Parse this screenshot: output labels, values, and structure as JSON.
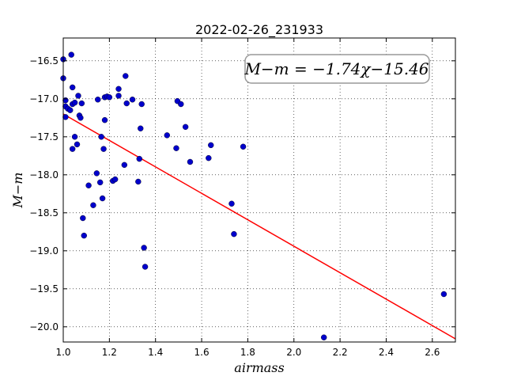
{
  "chart_data": {
    "type": "scatter",
    "title": "2022-02-26_231933",
    "xlabel": "airmass",
    "ylabel": "M−m",
    "xlim": [
      1.0,
      2.7
    ],
    "ylim": [
      -20.2,
      -16.2
    ],
    "y_inverted": true,
    "grid": true,
    "xticks": [
      1.0,
      1.2,
      1.4,
      1.6,
      1.8,
      2.0,
      2.2,
      2.4,
      2.6
    ],
    "xtick_labels": [
      "1.0",
      "1.2",
      "1.4",
      "1.6",
      "1.8",
      "2.0",
      "2.2",
      "2.4",
      "2.6"
    ],
    "yticks": [
      -16.5,
      -17.0,
      -17.5,
      -18.0,
      -18.5,
      -19.0,
      -19.5,
      -20.0
    ],
    "ytick_labels": [
      "−16.5",
      "−17.0",
      "−17.5",
      "−18.0",
      "−18.5",
      "−19.0",
      "−19.5",
      "−20.0"
    ],
    "annotation": "M−m = −1.74χ−15.46",
    "annotation_position": "top-right",
    "fit_line": {
      "slope": -1.74,
      "intercept": -15.46,
      "color": "#ff0000"
    },
    "point_color": "#0000cc",
    "series": [
      {
        "points": [
          [
            1.0,
            -16.48
          ],
          [
            1.0,
            -16.73
          ],
          [
            1.01,
            -17.02
          ],
          [
            1.01,
            -17.1
          ],
          [
            1.01,
            -17.24
          ],
          [
            1.02,
            -17.13
          ],
          [
            1.03,
            -17.15
          ],
          [
            1.035,
            -16.42
          ],
          [
            1.04,
            -16.85
          ],
          [
            1.04,
            -17.07
          ],
          [
            1.04,
            -17.66
          ],
          [
            1.05,
            -17.05
          ],
          [
            1.05,
            -17.5
          ],
          [
            1.06,
            -17.6
          ],
          [
            1.065,
            -16.96
          ],
          [
            1.07,
            -17.22
          ],
          [
            1.075,
            -17.25
          ],
          [
            1.08,
            -17.06
          ],
          [
            1.085,
            -18.57
          ],
          [
            1.09,
            -18.8
          ],
          [
            1.11,
            -18.14
          ],
          [
            1.13,
            -18.4
          ],
          [
            1.145,
            -17.98
          ],
          [
            1.15,
            -17.01
          ],
          [
            1.16,
            -18.1
          ],
          [
            1.165,
            -17.5
          ],
          [
            1.17,
            -18.31
          ],
          [
            1.175,
            -17.66
          ],
          [
            1.18,
            -16.98
          ],
          [
            1.18,
            -17.28
          ],
          [
            1.19,
            -16.97
          ],
          [
            1.2,
            -16.98
          ],
          [
            1.215,
            -18.08
          ],
          [
            1.225,
            -18.06
          ],
          [
            1.24,
            -16.87
          ],
          [
            1.24,
            -16.96
          ],
          [
            1.265,
            -17.87
          ],
          [
            1.27,
            -16.7
          ],
          [
            1.275,
            -17.06
          ],
          [
            1.3,
            -17.01
          ],
          [
            1.325,
            -18.09
          ],
          [
            1.33,
            -17.79
          ],
          [
            1.335,
            -17.39
          ],
          [
            1.34,
            -17.07
          ],
          [
            1.35,
            -18.96
          ],
          [
            1.355,
            -19.21
          ],
          [
            1.45,
            -17.48
          ],
          [
            1.49,
            -17.65
          ],
          [
            1.495,
            -17.03
          ],
          [
            1.51,
            -17.07
          ],
          [
            1.53,
            -17.37
          ],
          [
            1.55,
            -17.83
          ],
          [
            1.63,
            -17.78
          ],
          [
            1.64,
            -17.61
          ],
          [
            1.73,
            -18.38
          ],
          [
            1.74,
            -18.78
          ],
          [
            1.78,
            -17.63
          ],
          [
            2.13,
            -20.14
          ],
          [
            2.65,
            -19.57
          ]
        ]
      }
    ]
  }
}
